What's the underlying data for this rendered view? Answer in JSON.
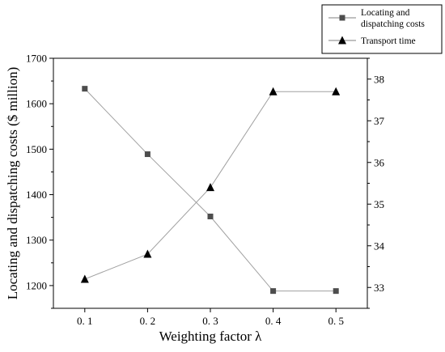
{
  "chart_data": {
    "type": "line",
    "x": [
      0.1,
      0.2,
      0.3,
      0.4,
      0.5
    ],
    "x_tick_labels": [
      "0. 1",
      "0. 2",
      "0. 3",
      "0. 4",
      "0. 5"
    ],
    "xlim": [
      0.05,
      0.55
    ],
    "xlabel": "Weighting factor λ",
    "ylabel": "Locating and dispatching costs ($ million)",
    "ylim": [
      1150,
      1700
    ],
    "y_ticks": [
      1200,
      1300,
      1400,
      1500,
      1600,
      1700
    ],
    "y2lim": [
      32.5,
      38.5
    ],
    "y2_ticks": [
      33,
      34,
      35,
      36,
      37,
      38
    ],
    "grid": false,
    "legend_position": "above top-right, outside plot",
    "series": [
      {
        "name": "Locating and dispatching costs",
        "legend_lines": [
          "Locating and",
          "dispatching costs"
        ],
        "axis": "left",
        "marker": "square",
        "values": [
          1633,
          1489,
          1352,
          1188,
          1188
        ]
      },
      {
        "name": "Transport time",
        "legend_lines": [
          "Transport time"
        ],
        "axis": "right",
        "marker": "triangle",
        "values": [
          33.2,
          33.8,
          35.4,
          37.7,
          37.7
        ]
      }
    ],
    "colors": {
      "line": "#a0a0a0",
      "square_marker": "#4d4d4d",
      "triangle_marker": "#000000",
      "axis": "#000000"
    }
  }
}
